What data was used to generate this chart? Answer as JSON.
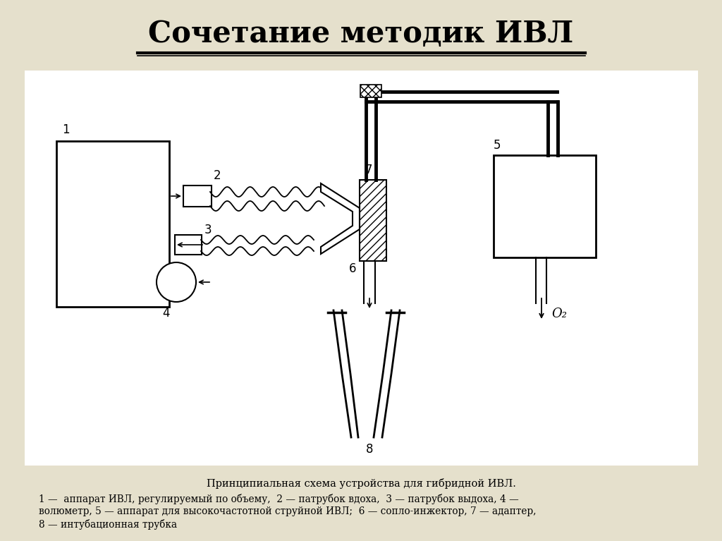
{
  "title": "Сочетание методик ИВЛ",
  "bg_color": "#e5e0cc",
  "diagram_bg": "#ffffff",
  "caption_line1": "Принципиальная схема устройства для гибридной ИВЛ.",
  "caption_line2": "1 —  аппарат ИВЛ, регулируемый по объему,  2 — патрубок вдоха,  3 — патрубок выдоха, 4 —",
  "caption_line3": "волюметр, 5 — аппарат для высокочастотной струйной ИВЛ;  6 — сопло-инжектор, 7 — адаптер,",
  "caption_line4": "8 — интубационная трубка"
}
